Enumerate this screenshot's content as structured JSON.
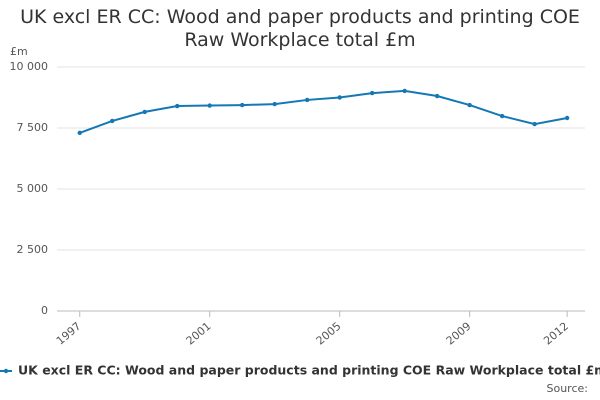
{
  "chart_data": {
    "type": "line",
    "title": "UK excl ER CC: Wood and paper products and printing COE Raw Workplace total £m",
    "y_label": "£m",
    "x": [
      1997,
      1998,
      1999,
      2000,
      2001,
      2002,
      2003,
      2004,
      2005,
      2006,
      2007,
      2008,
      2009,
      2010,
      2011,
      2012
    ],
    "series": [
      {
        "name": "UK excl ER CC: Wood and paper products and printing COE Raw Workplace total £m",
        "color": "#1478b5",
        "values": [
          7300,
          7790,
          8160,
          8400,
          8420,
          8440,
          8480,
          8650,
          8750,
          8930,
          9020,
          8810,
          8440,
          7990,
          7660,
          7910
        ]
      }
    ],
    "xlim": [
      1996.3,
      2012.55
    ],
    "xticks": [
      1997,
      2001,
      2005,
      2009,
      2012
    ],
    "ylim": [
      0,
      10000
    ],
    "yticks": [
      0,
      {
        "value": 2500,
        "label": "2 500"
      },
      {
        "value": 5000,
        "label": "5 000"
      },
      {
        "value": 7500,
        "label": "7 500"
      },
      {
        "value": 10000,
        "label": "10 000"
      }
    ],
    "grid": true,
    "legend": "bottom",
    "source": "Source:"
  }
}
